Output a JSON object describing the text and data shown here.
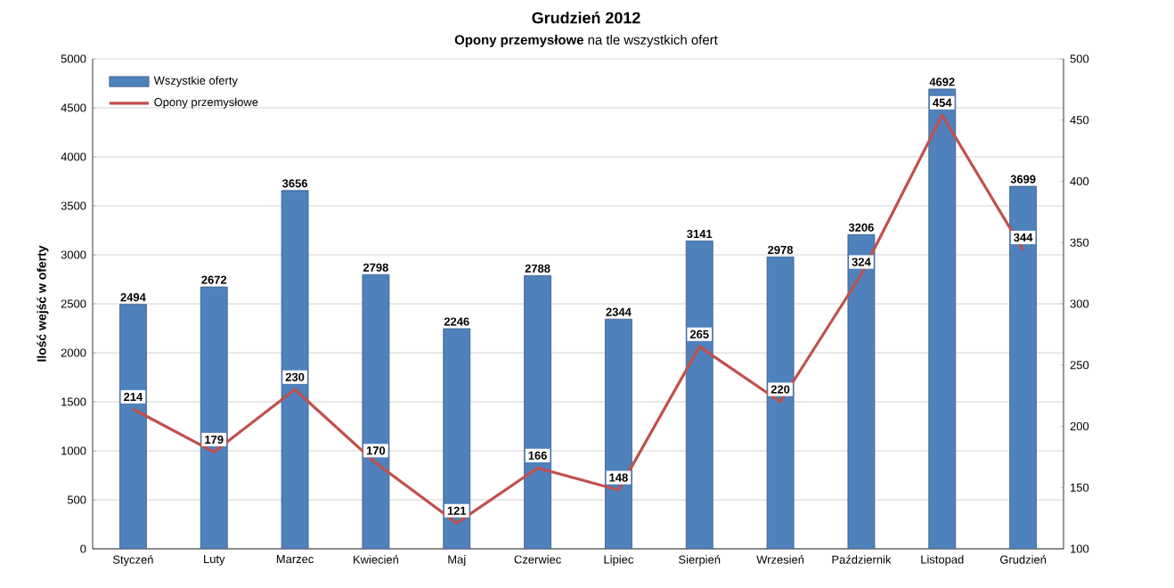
{
  "chart_data": {
    "type": "bar",
    "title": "Grudzień 2012",
    "subtitle": "**Opony przemysłowe** na tle wszystkich ofert",
    "ylabel": "Ilość wejść w oferty",
    "categories": [
      "Styczeń",
      "Luty",
      "Marzec",
      "Kwiecień",
      "Maj",
      "Czerwiec",
      "Lipiec",
      "Sierpień",
      "Wrzesień",
      "Październik",
      "Listopad",
      "Grudzień"
    ],
    "series": [
      {
        "name": "Wszystkie oferty",
        "color": "#4f81bd",
        "values": [
          2494,
          2672,
          3656,
          2798,
          2246,
          2788,
          2344,
          3141,
          2978,
          3206,
          4692,
          3699
        ]
      },
      {
        "name": "Opony przemysłowe",
        "type": "line",
        "axis": "y2",
        "color": "#c0504d",
        "values": [
          214,
          179,
          230,
          170,
          121,
          166,
          148,
          265,
          220,
          324,
          454,
          344
        ]
      }
    ],
    "ylim": [
      0,
      5000
    ],
    "yticks": [
      0,
      500,
      1000,
      1500,
      2000,
      2500,
      3000,
      3500,
      4000,
      4500,
      5000
    ],
    "y2lim": [
      100,
      500
    ],
    "y2ticks": [
      100,
      150,
      200,
      250,
      300,
      350,
      400,
      450,
      500
    ],
    "grid": "y",
    "legend": "top left",
    "data_labels": true
  }
}
